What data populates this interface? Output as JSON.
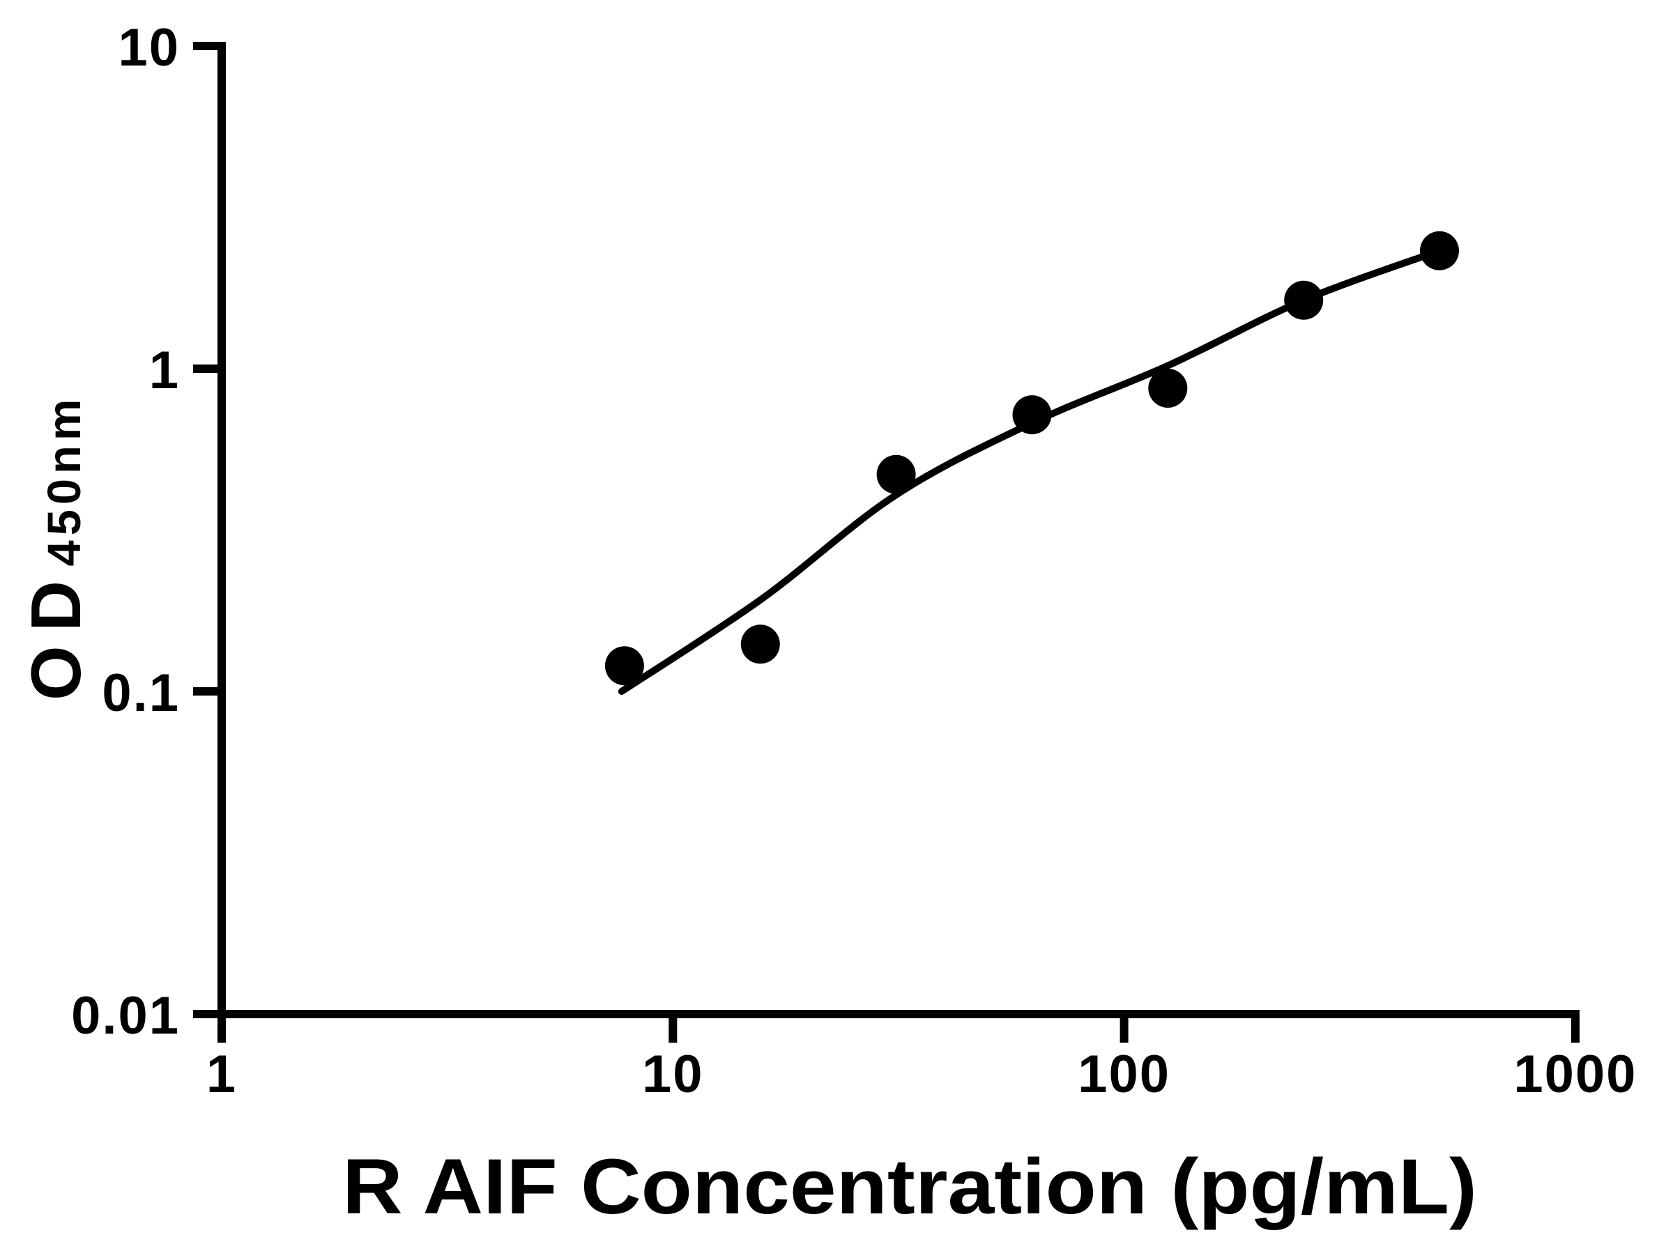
{
  "chart_data": {
    "type": "scatter",
    "title": "",
    "xlabel": "R AIF Concentration (pg/mL)",
    "ylabel_main": "OD",
    "ylabel_sub": "450nm",
    "x_scale": "log",
    "y_scale": "log",
    "xlim": [
      1,
      1000
    ],
    "ylim": [
      0.01,
      10
    ],
    "x_tick_labels": [
      "1",
      "10",
      "100",
      "1000"
    ],
    "x_tick_values": [
      1,
      10,
      100,
      1000
    ],
    "y_tick_labels": [
      "0.01",
      "0.1",
      "1",
      "10"
    ],
    "y_tick_values": [
      0.01,
      0.1,
      1,
      10
    ],
    "grid": false,
    "legend": "none",
    "series": [
      {
        "name": "standard-curve-points",
        "marker": "filled-circle",
        "color": "#000000",
        "x": [
          7.8125,
          15.625,
          31.25,
          62.5,
          125,
          250,
          500
        ],
        "y": [
          0.12,
          0.14,
          0.47,
          0.72,
          0.87,
          1.63,
          2.32
        ]
      }
    ],
    "fit_curve": {
      "name": "fitted-standard-curve",
      "color": "#000000",
      "x": [
        7.7,
        15.7,
        31.2,
        62.7,
        125.6,
        250,
        500
      ],
      "y": [
        0.1,
        0.193,
        0.406,
        0.68,
        1.025,
        1.63,
        2.32
      ]
    },
    "colors": {
      "foreground": "#000000",
      "background": "#ffffff"
    }
  }
}
